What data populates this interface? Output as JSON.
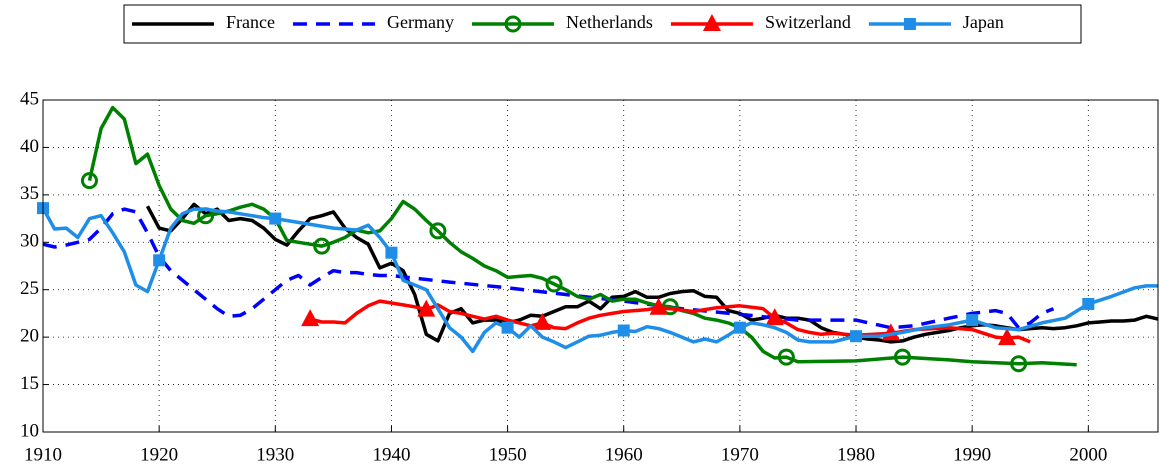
{
  "chart_data": {
    "type": "line",
    "xlim": [
      1910,
      2006
    ],
    "xticks": [
      1910,
      1920,
      1930,
      1940,
      1950,
      1960,
      1970,
      1980,
      1990,
      2000
    ],
    "ylim": [
      10,
      45
    ],
    "yticks": [
      10,
      15,
      20,
      25,
      30,
      35,
      40,
      45
    ],
    "grid": true,
    "legend": "top",
    "series": [
      {
        "name": "France",
        "color": "#000000",
        "line_style": "solid",
        "marker": "none",
        "x": [
          1919,
          1920,
          1921,
          1922,
          1923,
          1924,
          1925,
          1926,
          1927,
          1928,
          1929,
          1930,
          1931,
          1932,
          1933,
          1934,
          1935,
          1936,
          1937,
          1938,
          1939,
          1940,
          1941,
          1942,
          1943,
          1944,
          1945,
          1946,
          1947,
          1948,
          1949,
          1950,
          1951,
          1952,
          1953,
          1954,
          1955,
          1956,
          1957,
          1958,
          1959,
          1960,
          1961,
          1962,
          1963,
          1964,
          1965,
          1966,
          1967,
          1968,
          1969,
          1970,
          1971,
          1972,
          1973,
          1974,
          1975,
          1976,
          1977,
          1978,
          1979,
          1980,
          1981,
          1982,
          1983,
          1984,
          1985,
          1986,
          1987,
          1988,
          1989,
          1990,
          1991,
          1992,
          1993,
          1994,
          1995,
          1996,
          1997,
          1998,
          1999,
          2000,
          2001,
          2002,
          2003,
          2004,
          2005,
          2006
        ],
        "values": [
          33.8,
          31.5,
          31.2,
          32.5,
          34.0,
          33.0,
          33.5,
          32.3,
          32.5,
          32.3,
          31.5,
          30.3,
          29.7,
          31.2,
          32.5,
          32.8,
          33.2,
          31.5,
          30.5,
          29.8,
          27.3,
          27.8,
          27.0,
          24.5,
          20.3,
          19.6,
          22.5,
          23.0,
          21.5,
          21.8,
          21.8,
          21.5,
          21.8,
          22.3,
          22.2,
          22.7,
          23.2,
          23.2,
          23.8,
          23.0,
          24.2,
          24.3,
          24.8,
          24.2,
          24.2,
          24.6,
          24.8,
          24.9,
          24.3,
          24.2,
          22.8,
          22.5,
          21.8,
          22.0,
          22.3,
          22.0,
          22.0,
          21.8,
          21.0,
          20.5,
          20.3,
          20.0,
          19.8,
          19.7,
          19.5,
          19.6,
          20.0,
          20.3,
          20.5,
          20.7,
          21.0,
          21.2,
          21.3,
          21.2,
          21.0,
          20.8,
          20.9,
          21.0,
          20.9,
          21.0,
          21.2,
          21.5,
          21.6,
          21.7,
          21.7,
          21.8,
          22.2,
          21.9
        ]
      },
      {
        "name": "Germany",
        "color": "#0000ff",
        "line_style": "dashed",
        "marker": "none",
        "x": [
          1910,
          1911,
          1912,
          1913,
          1914,
          1915,
          1916,
          1917,
          1918,
          1919,
          1920,
          1921,
          1922,
          1923,
          1924,
          1925,
          1926,
          1927,
          1928,
          1929,
          1930,
          1931,
          1932,
          1933,
          1934,
          1935,
          1936,
          1937,
          1938,
          1939,
          1940,
          1945,
          1950,
          1955,
          1960,
          1965,
          1970,
          1975,
          1980,
          1983,
          1985,
          1988,
          1990,
          1992,
          1993,
          1994,
          1995,
          1996,
          1997
        ],
        "values": [
          29.8,
          29.5,
          29.7,
          30.0,
          30.3,
          31.5,
          33.0,
          33.5,
          33.2,
          31.0,
          28.5,
          27.0,
          26.0,
          25.0,
          24.0,
          23.0,
          22.2,
          22.3,
          23.0,
          24.0,
          25.0,
          26.0,
          26.5,
          25.5,
          26.3,
          27.0,
          26.8,
          26.8,
          26.6,
          26.5,
          26.5,
          25.8,
          25.2,
          24.5,
          23.8,
          23.0,
          22.4,
          21.8,
          21.8,
          21.0,
          21.2,
          22.0,
          22.5,
          22.8,
          22.5,
          21.0,
          21.5,
          22.5,
          23.0
        ]
      },
      {
        "name": "Netherlands",
        "color": "#008000",
        "line_style": "solid",
        "marker": "circle",
        "x": [
          1914,
          1915,
          1916,
          1917,
          1918,
          1919,
          1920,
          1921,
          1922,
          1923,
          1924,
          1925,
          1926,
          1927,
          1928,
          1929,
          1930,
          1931,
          1932,
          1933,
          1934,
          1935,
          1936,
          1937,
          1938,
          1939,
          1940,
          1941,
          1942,
          1943,
          1944,
          1945,
          1946,
          1947,
          1948,
          1949,
          1950,
          1951,
          1952,
          1953,
          1954,
          1955,
          1956,
          1957,
          1958,
          1959,
          1960,
          1961,
          1962,
          1963,
          1964,
          1965,
          1966,
          1967,
          1968,
          1969,
          1970,
          1971,
          1972,
          1973,
          1974,
          1975,
          1980,
          1984,
          1988,
          1990,
          1994,
          1996,
          1999
        ],
        "values": [
          36.5,
          42.0,
          44.2,
          43.0,
          38.3,
          39.3,
          36.0,
          33.5,
          32.3,
          32.0,
          32.8,
          33.0,
          33.3,
          33.7,
          34.0,
          33.5,
          32.5,
          30.2,
          30.0,
          29.8,
          29.6,
          30.0,
          30.5,
          31.3,
          31.0,
          31.2,
          32.5,
          34.3,
          33.5,
          32.3,
          31.2,
          30.0,
          29.0,
          28.3,
          27.5,
          27.0,
          26.3,
          26.4,
          26.5,
          26.2,
          25.6,
          25.0,
          24.3,
          24.0,
          24.5,
          23.8,
          24.0,
          24.0,
          23.6,
          23.3,
          23.2,
          22.8,
          22.5,
          22.0,
          21.8,
          21.5,
          21.0,
          20.0,
          18.5,
          17.8,
          17.9,
          17.4,
          17.5,
          17.9,
          17.6,
          17.4,
          17.2,
          17.3,
          17.1
        ]
      },
      {
        "name": "Switzerland",
        "color": "#ff0000",
        "line_style": "solid",
        "marker": "triangle",
        "x": [
          1933,
          1934,
          1935,
          1936,
          1937,
          1938,
          1939,
          1940,
          1941,
          1942,
          1943,
          1944,
          1945,
          1946,
          1947,
          1948,
          1949,
          1950,
          1951,
          1952,
          1953,
          1954,
          1955,
          1956,
          1957,
          1958,
          1959,
          1960,
          1962,
          1963,
          1964,
          1966,
          1968,
          1970,
          1972,
          1973,
          1974,
          1975,
          1976,
          1977,
          1978,
          1980,
          1983,
          1985,
          1988,
          1990,
          1992,
          1993,
          1994,
          1995
        ],
        "values": [
          21.9,
          21.6,
          21.6,
          21.5,
          22.5,
          23.3,
          23.8,
          23.6,
          23.4,
          23.2,
          22.9,
          23.4,
          22.7,
          22.5,
          22.2,
          21.9,
          22.2,
          21.8,
          21.5,
          21.2,
          21.5,
          21.0,
          20.9,
          21.5,
          22.0,
          22.3,
          22.5,
          22.7,
          22.9,
          23.1,
          23.0,
          22.7,
          23.1,
          23.3,
          23.0,
          22.0,
          21.5,
          20.8,
          20.5,
          20.3,
          20.4,
          20.2,
          20.4,
          20.8,
          21.0,
          20.8,
          20.0,
          19.9,
          20.0,
          19.5
        ]
      },
      {
        "name": "Japan",
        "color": "#1e8ee8",
        "line_style": "solid",
        "marker": "square",
        "x": [
          1910,
          1911,
          1912,
          1913,
          1914,
          1915,
          1916,
          1917,
          1918,
          1919,
          1920,
          1921,
          1922,
          1923,
          1924,
          1925,
          1926,
          1927,
          1928,
          1929,
          1930,
          1935,
          1937,
          1938,
          1939,
          1940,
          1941,
          1942,
          1943,
          1944,
          1945,
          1946,
          1947,
          1948,
          1949,
          1950,
          1951,
          1952,
          1953,
          1954,
          1955,
          1956,
          1957,
          1958,
          1959,
          1960,
          1961,
          1962,
          1963,
          1964,
          1965,
          1966,
          1967,
          1968,
          1969,
          1970,
          1971,
          1972,
          1973,
          1974,
          1975,
          1976,
          1977,
          1978,
          1979,
          1980,
          1982,
          1984,
          1986,
          1988,
          1990,
          1992,
          1994,
          1996,
          1998,
          2000,
          2002,
          2004,
          2005,
          2006
        ],
        "values": [
          33.6,
          31.4,
          31.5,
          30.5,
          32.5,
          32.8,
          31.0,
          29.0,
          25.5,
          24.8,
          28.1,
          31.5,
          33.0,
          33.5,
          33.5,
          33.3,
          33.2,
          33.0,
          32.8,
          32.6,
          32.5,
          31.5,
          31.3,
          31.8,
          30.5,
          28.9,
          26.0,
          25.5,
          25.0,
          23.0,
          21.0,
          20.0,
          18.5,
          20.5,
          21.5,
          21.0,
          20.0,
          21.2,
          20.0,
          19.5,
          18.9,
          19.5,
          20.1,
          20.2,
          20.5,
          20.7,
          20.6,
          21.1,
          20.9,
          20.5,
          20.0,
          19.5,
          19.8,
          19.5,
          20.2,
          21.0,
          21.5,
          21.3,
          21.0,
          20.5,
          19.7,
          19.5,
          19.5,
          19.5,
          19.8,
          20.1,
          20.1,
          20.5,
          21.0,
          21.3,
          21.8,
          21.0,
          20.8,
          21.5,
          22.0,
          23.5,
          24.3,
          25.2,
          25.4,
          25.4
        ]
      }
    ]
  }
}
